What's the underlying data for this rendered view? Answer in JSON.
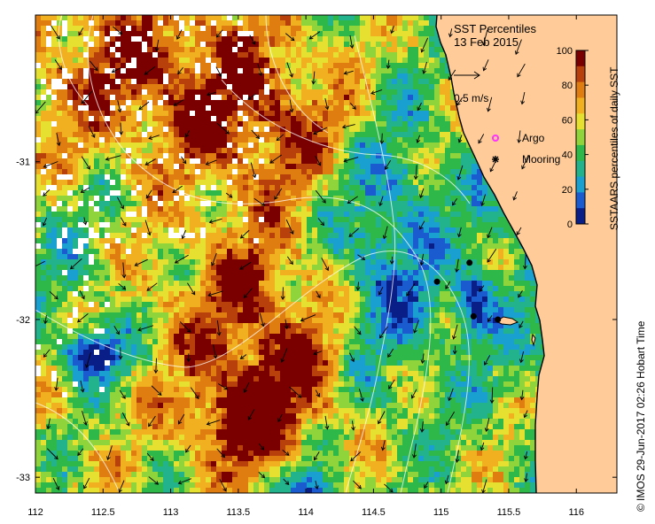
{
  "map": {
    "title": "SST Percentiles",
    "date": "13 Feb 2015",
    "scale_arrow_label": "0.5 m/s",
    "legend": [
      {
        "label": "Argo",
        "marker": "magenta-ring",
        "color": "#ff33ff"
      },
      {
        "label": "Mooring",
        "marker": "black-star",
        "color": "#000000"
      }
    ],
    "colorbar": {
      "label": "SSTAARS percentiles of daily SST",
      "ticks": [
        "100",
        "80",
        "60",
        "40",
        "20",
        "0"
      ],
      "colors": [
        "#7a0000",
        "#b8400a",
        "#e07d10",
        "#f0b020",
        "#e6e030",
        "#8fd43a",
        "#2fb84a",
        "#22b28c",
        "#1aa0d0",
        "#1a5cd0",
        "#0a1e88"
      ]
    },
    "x_axis": {
      "ticks": [
        "112",
        "112.5",
        "113",
        "113.5",
        "114",
        "114.5",
        "115",
        "115.5",
        "116"
      ],
      "range": [
        112,
        116.3
      ]
    },
    "y_axis": {
      "ticks": [
        "-31",
        "-32",
        "-33"
      ],
      "range": [
        -33.1,
        -30.07
      ]
    },
    "land_color": "#ffcc99",
    "moorings": [
      {
        "lon": 115.21,
        "lat": -31.64
      },
      {
        "lon": 114.97,
        "lat": -31.76
      },
      {
        "lon": 115.24,
        "lat": -31.98
      },
      {
        "lon": 115.42,
        "lat": -32.0
      }
    ],
    "credit": "IMOS 29-Jun-2017 02:26 Hobart Time",
    "copyright_symbol": "©"
  }
}
